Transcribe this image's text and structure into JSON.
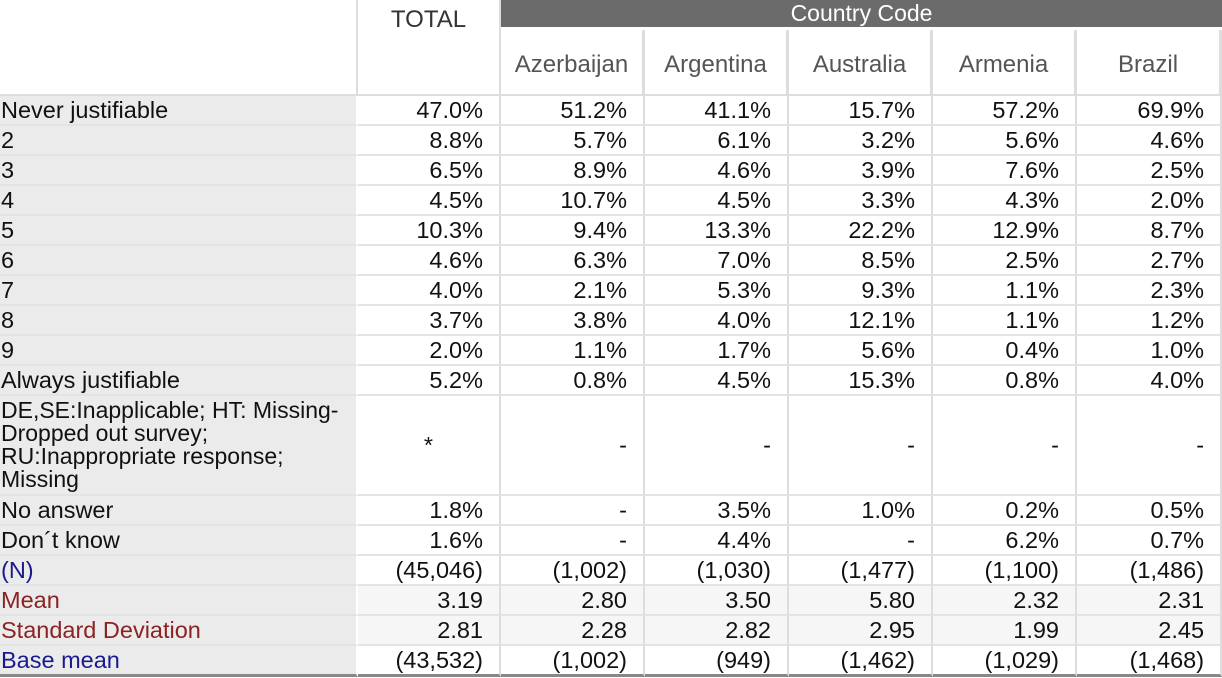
{
  "header": {
    "group_title": "Country Code",
    "total_label": "TOTAL",
    "countries": [
      "Azerbaijan",
      "Argentina",
      "Australia",
      "Armenia",
      "Brazil"
    ]
  },
  "rows": [
    {
      "label": "Never justifiable",
      "values": [
        "47.0%",
        "51.2%",
        "41.1%",
        "15.7%",
        "57.2%",
        "69.9%"
      ]
    },
    {
      "label": "2",
      "values": [
        "8.8%",
        "5.7%",
        "6.1%",
        "3.2%",
        "5.6%",
        "4.6%"
      ]
    },
    {
      "label": "3",
      "values": [
        "6.5%",
        "8.9%",
        "4.6%",
        "3.9%",
        "7.6%",
        "2.5%"
      ]
    },
    {
      "label": "4",
      "values": [
        "4.5%",
        "10.7%",
        "4.5%",
        "3.3%",
        "4.3%",
        "2.0%"
      ]
    },
    {
      "label": "5",
      "values": [
        "10.3%",
        "9.4%",
        "13.3%",
        "22.2%",
        "12.9%",
        "8.7%"
      ]
    },
    {
      "label": "6",
      "values": [
        "4.6%",
        "6.3%",
        "7.0%",
        "8.5%",
        "2.5%",
        "2.7%"
      ]
    },
    {
      "label": "7",
      "values": [
        "4.0%",
        "2.1%",
        "5.3%",
        "9.3%",
        "1.1%",
        "2.3%"
      ]
    },
    {
      "label": "8",
      "values": [
        "3.7%",
        "3.8%",
        "4.0%",
        "12.1%",
        "1.1%",
        "1.2%"
      ]
    },
    {
      "label": "9",
      "values": [
        "2.0%",
        "1.1%",
        "1.7%",
        "5.6%",
        "0.4%",
        "1.0%"
      ]
    },
    {
      "label": "Always justifiable",
      "values": [
        "5.2%",
        "0.8%",
        "4.5%",
        "15.3%",
        "0.8%",
        "4.0%"
      ]
    },
    {
      "label": "DE,SE:Inapplicable; HT: Missing-Dropped out survey; RU:Inappropriate response; Missing",
      "values": [
        "*",
        "-",
        "-",
        "-",
        "-",
        "-"
      ]
    },
    {
      "label": "No answer",
      "values": [
        "1.8%",
        "-",
        "3.5%",
        "1.0%",
        "0.2%",
        "0.5%"
      ]
    },
    {
      "label": "Don´t know",
      "values": [
        "1.6%",
        "-",
        "4.4%",
        "-",
        "6.2%",
        "0.7%"
      ]
    },
    {
      "label": "(N)",
      "values": [
        "(45,046)",
        "(1,002)",
        "(1,030)",
        "(1,477)",
        "(1,100)",
        "(1,486)"
      ]
    },
    {
      "label": "Mean",
      "values": [
        "3.19",
        "2.80",
        "3.50",
        "5.80",
        "2.32",
        "2.31"
      ]
    },
    {
      "label": "Standard Deviation",
      "values": [
        "2.81",
        "2.28",
        "2.82",
        "2.95",
        "1.99",
        "2.45"
      ]
    },
    {
      "label": "Base mean",
      "values": [
        "(43,532)",
        "(1,002)",
        "(949)",
        "(1,462)",
        "(1,029)",
        "(1,468)"
      ]
    }
  ]
}
